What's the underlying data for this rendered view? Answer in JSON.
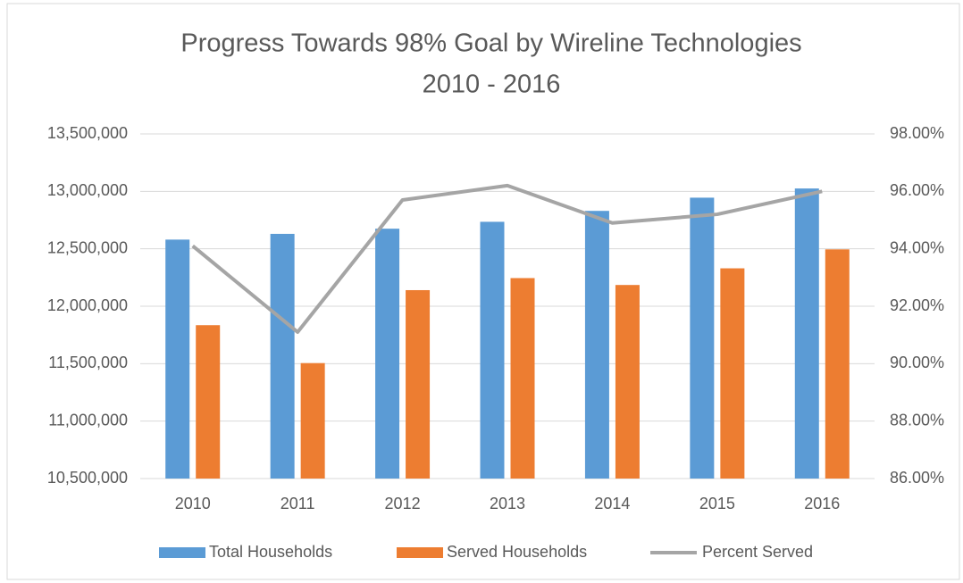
{
  "chart_data": {
    "type": "bar",
    "title": "Progress Towards 98% Goal by Wireline Technologies",
    "subtitle": "2010 - 2016",
    "categories": [
      "2010",
      "2011",
      "2012",
      "2013",
      "2014",
      "2015",
      "2016"
    ],
    "series": [
      {
        "name": "Total Households",
        "color": "#5b9bd5",
        "type": "bar",
        "values": [
          12580000,
          12630000,
          12675000,
          12735000,
          12830000,
          12945000,
          13025000
        ]
      },
      {
        "name": "Served Households",
        "color": "#ed7d31",
        "type": "bar",
        "values": [
          11835000,
          11505000,
          12140000,
          12245000,
          12185000,
          12330000,
          12495000
        ]
      },
      {
        "name": "Percent Served",
        "color": "#a5a5a5",
        "type": "line",
        "axis": "y2",
        "values": [
          94.1,
          91.1,
          95.7,
          96.2,
          94.9,
          95.2,
          96.0
        ]
      }
    ],
    "ylim": [
      10500000,
      13500000
    ],
    "yticks": [
      {
        "value": 10500000,
        "label": "10,500,000"
      },
      {
        "value": 11000000,
        "label": "11,000,000"
      },
      {
        "value": 11500000,
        "label": "11,500,000"
      },
      {
        "value": 12000000,
        "label": "12,000,000"
      },
      {
        "value": 12500000,
        "label": "12,500,000"
      },
      {
        "value": 13000000,
        "label": "13,000,000"
      },
      {
        "value": 13500000,
        "label": "13,500,000"
      }
    ],
    "y2lim": [
      86,
      98
    ],
    "y2ticks": [
      {
        "value": 86,
        "label": "86.00%"
      },
      {
        "value": 88,
        "label": "88.00%"
      },
      {
        "value": 90,
        "label": "90.00%"
      },
      {
        "value": 92,
        "label": "92.00%"
      },
      {
        "value": 94,
        "label": "94.00%"
      },
      {
        "value": 96,
        "label": "96.00%"
      },
      {
        "value": 98,
        "label": "98.00%"
      }
    ],
    "grid": true,
    "legend": "bottom"
  }
}
